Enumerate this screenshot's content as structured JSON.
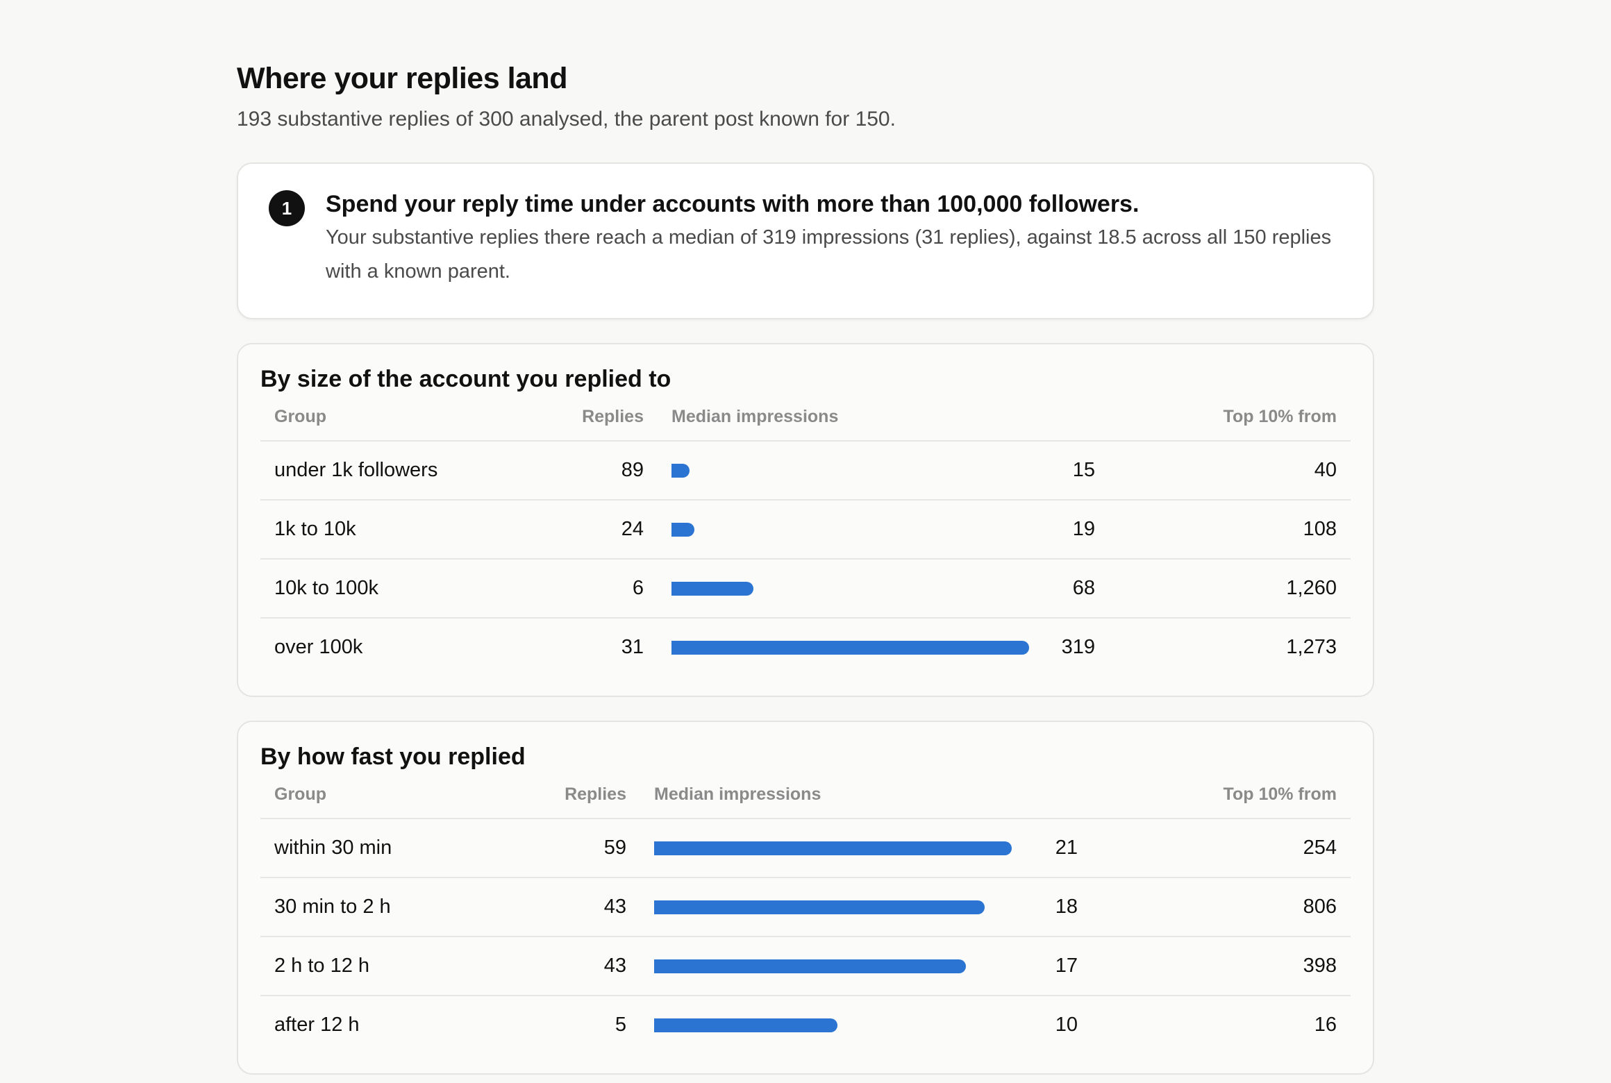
{
  "header": {
    "title": "Where your replies land",
    "subtitle": "193 substantive replies of 300 analysed, the parent post known for 150."
  },
  "insight": {
    "number": "1",
    "headline": "Spend your reply time under accounts with more than 100,000 followers.",
    "text": "Your substantive replies there reach a median of 319 impressions (31 replies), against 18.5 across all 150 replies with a known parent."
  },
  "size_table": {
    "title": "By size of the account you replied to",
    "columns": {
      "group": "Group",
      "replies": "Replies",
      "median": "Median impressions",
      "top": "Top 10% from"
    },
    "max_median": 319,
    "rows": [
      {
        "group": "under 1k followers",
        "replies": "89",
        "median": "15",
        "median_value": 15,
        "top": "40"
      },
      {
        "group": "1k to 10k",
        "replies": "24",
        "median": "19",
        "median_value": 19,
        "top": "108"
      },
      {
        "group": "10k to 100k",
        "replies": "6",
        "median": "68",
        "median_value": 68,
        "top": "1,260"
      },
      {
        "group": "over 100k",
        "replies": "31",
        "median": "319",
        "median_value": 319,
        "top": "1,273"
      }
    ]
  },
  "speed_table": {
    "title": "By how fast you replied",
    "columns": {
      "group": "Group",
      "replies": "Replies",
      "median": "Median impressions",
      "top": "Top 10% from"
    },
    "max_median": 21,
    "rows": [
      {
        "group": "within 30 min",
        "replies": "59",
        "median": "21",
        "median_value": 21,
        "top": "254"
      },
      {
        "group": "30 min to 2 h",
        "replies": "43",
        "median": "18",
        "median_value": 18,
        "top": "806"
      },
      {
        "group": "2 h to 12 h",
        "replies": "43",
        "median": "17",
        "median_value": 17,
        "top": "398"
      },
      {
        "group": "after 12 h",
        "replies": "5",
        "median": "10",
        "median_value": 10,
        "top": "16"
      }
    ]
  },
  "colors": {
    "bar": "#2b74d2",
    "badge": "#111111"
  }
}
